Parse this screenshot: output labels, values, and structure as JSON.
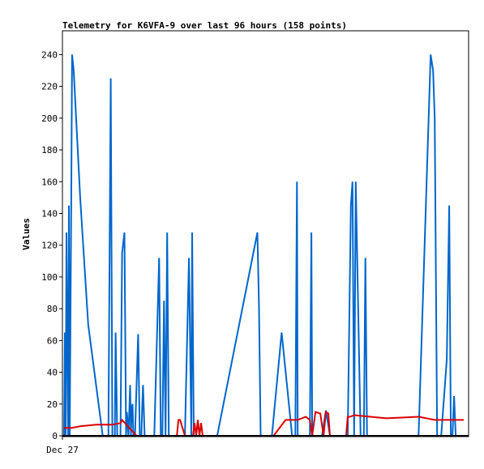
{
  "chart_data": {
    "type": "line",
    "title": "Telemetry for K6VFA-9 over last 96 hours (158 points)",
    "ylabel": "Values",
    "xlabel": "",
    "x_tick_labels": [
      "Dec 27"
    ],
    "ylim": [
      0,
      255
    ],
    "y_ticks": [
      0,
      20,
      40,
      60,
      80,
      100,
      120,
      140,
      160,
      180,
      200,
      220,
      240
    ],
    "grid": false,
    "legend": "none",
    "colors": {
      "blue": "#0066cc",
      "red": "#dd0000",
      "black": "#000000"
    },
    "series": [
      {
        "color": "#0066cc",
        "x": [
          0,
          1,
          2,
          3,
          5,
          6,
          7,
          8,
          9,
          10,
          12,
          15,
          20,
          30,
          48,
          55,
          58,
          60,
          62,
          63,
          64,
          66,
          67,
          70,
          72,
          75,
          77,
          78,
          80,
          82,
          83,
          84,
          85,
          86,
          87,
          88,
          92,
          94,
          96,
          97,
          98,
          100,
          101,
          103,
          104,
          106,
          112,
          118,
          120,
          121,
          122,
          124,
          126,
          128,
          130,
          133,
          140,
          150,
          155,
          158,
          159,
          161,
          162,
          164,
          166,
          170,
          175,
          178,
          180,
          190,
          240,
          242,
          244,
          245,
          246,
          258,
          270,
          283,
          285,
          287,
          289,
          290,
          291,
          292,
          294,
          295,
          297,
          299,
          300,
          303,
          305,
          307,
          308,
          320,
          325,
          330,
          333,
          334,
          336,
          338,
          340,
          342,
          343,
          345,
          346,
          348,
          352,
          356,
          358,
          360,
          362,
          368,
          370,
          372,
          374,
          376,
          378,
          380,
          382,
          384,
          386,
          390,
          395,
          420,
          440,
          455,
          458,
          460,
          463,
          465,
          468,
          475,
          478,
          480,
          482,
          484,
          486,
          488,
          490,
          492,
          494,
          496
        ],
        "values": [
          0,
          65,
          0,
          128,
          0,
          145,
          0,
          80,
          150,
          240,
          230,
          200,
          150,
          70,
          0,
          0,
          225,
          0,
          0,
          0,
          65,
          0,
          0,
          0,
          115,
          128,
          0,
          15,
          0,
          32,
          0,
          18,
          20,
          0,
          0,
          0,
          64,
          0,
          0,
          18,
          32,
          0,
          0,
          0,
          0,
          0,
          0,
          112,
          0,
          0,
          0,
          85,
          0,
          128,
          0,
          0,
          0,
          0,
          112,
          0,
          128,
          0,
          0,
          0,
          0,
          0,
          0,
          0,
          0,
          0,
          128,
          80,
          0,
          0,
          0,
          0,
          65,
          0,
          0,
          0,
          160,
          0,
          0,
          0,
          0,
          0,
          0,
          0,
          0,
          0,
          0,
          128,
          0,
          0,
          16,
          0,
          0,
          0,
          0,
          0,
          0,
          0,
          0,
          0,
          0,
          0,
          0,
          145,
          160,
          0,
          160,
          0,
          0,
          0,
          112,
          0,
          0,
          0,
          0,
          0,
          0,
          0,
          0,
          0,
          0,
          240,
          230,
          200,
          0,
          0,
          0,
          48,
          145,
          0,
          0,
          25,
          0,
          0,
          0,
          0,
          0,
          0
        ]
      },
      {
        "color": "#dd0000",
        "x": [
          0,
          10,
          20,
          40,
          60,
          70,
          72,
          90,
          100,
          130,
          140,
          142,
          144,
          150,
          160,
          162,
          164,
          166,
          168,
          170,
          172,
          174,
          180,
          260,
          275,
          290,
          300,
          305,
          308,
          312,
          318,
          322,
          325,
          328,
          330,
          350,
          352,
          355,
          360,
          380,
          400,
          440,
          460,
          465,
          480,
          496
        ],
        "values": [
          5,
          5,
          6,
          7,
          7,
          8,
          10,
          0,
          0,
          0,
          0,
          10,
          10,
          0,
          0,
          8,
          0,
          10,
          0,
          8,
          0,
          0,
          0,
          0,
          10,
          10,
          12,
          10,
          0,
          15,
          14,
          0,
          15,
          14,
          0,
          0,
          12,
          12,
          13,
          12,
          11,
          12,
          10,
          10,
          10,
          10
        ]
      }
    ]
  }
}
